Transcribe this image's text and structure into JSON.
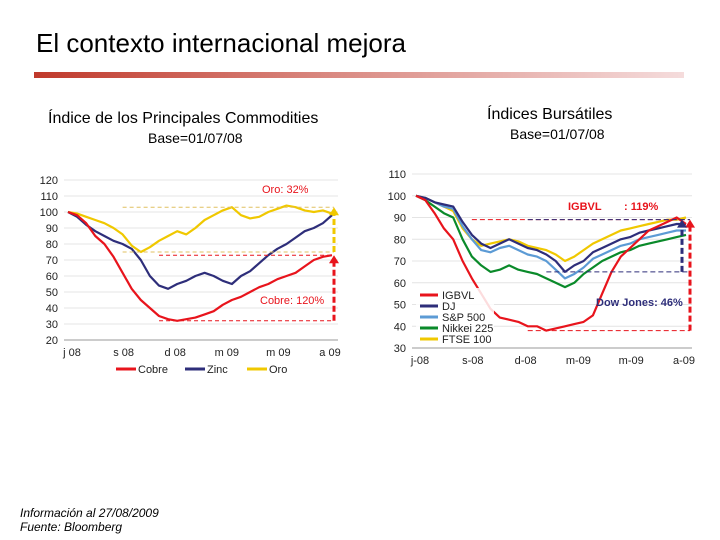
{
  "page": {
    "title": "El contexto internacional mejora",
    "footnote_info": "Información al 27/08/2009",
    "footnote_source": "Fuente: Bloomberg"
  },
  "chart_data": [
    {
      "type": "line",
      "title": "Índice de los Principales Commodities",
      "subtitle": "Base=01/07/08",
      "y_ticks": [
        "120",
        "110",
        "100",
        "90",
        "80",
        "70",
        "60",
        "50",
        "40",
        "30",
        "20"
      ],
      "ylim": [
        20,
        120
      ],
      "x_ticks": [
        "j 08",
        "s 08",
        "d 08",
        "m 09",
        "m 09",
        "a 09"
      ],
      "series": [
        {
          "name": "Cobre",
          "color": "#e8141c",
          "values": [
            100,
            98,
            93,
            85,
            80,
            72,
            62,
            52,
            45,
            40,
            35,
            33,
            32,
            33,
            34,
            36,
            38,
            42,
            45,
            47,
            50,
            53,
            55,
            58,
            60,
            62,
            66,
            70,
            72,
            73
          ]
        },
        {
          "name": "Zinc",
          "color": "#2e2e7a",
          "values": [
            100,
            97,
            92,
            88,
            85,
            82,
            80,
            77,
            70,
            60,
            54,
            52,
            55,
            57,
            60,
            62,
            60,
            57,
            55,
            60,
            63,
            68,
            73,
            77,
            80,
            84,
            88,
            90,
            93,
            98
          ]
        },
        {
          "name": "Oro",
          "color": "#f0c800",
          "values": [
            100,
            99,
            97,
            95,
            93,
            90,
            86,
            79,
            75,
            78,
            82,
            85,
            88,
            86,
            90,
            95,
            98,
            101,
            103,
            98,
            96,
            97,
            100,
            102,
            104,
            103,
            101,
            100,
            101,
            99
          ]
        }
      ],
      "annotations": [
        {
          "text": "Oro: 32%",
          "color": "#e8141c"
        },
        {
          "text": "Cobre: 120%",
          "color": "#e8141c"
        }
      ]
    },
    {
      "type": "line",
      "title": "Índices Bursátiles",
      "subtitle": "Base=01/07/08",
      "y_ticks": [
        "110",
        "100",
        "90",
        "80",
        "70",
        "60",
        "50",
        "40",
        "30"
      ],
      "ylim": [
        30,
        110
      ],
      "x_ticks": [
        "j-08",
        "s-08",
        "d-08",
        "m-09",
        "m-09",
        "a-09"
      ],
      "series": [
        {
          "name": "IGBVL",
          "color": "#e8141c",
          "values": [
            100,
            98,
            92,
            85,
            80,
            70,
            62,
            55,
            48,
            44,
            43,
            42,
            40,
            40,
            38,
            39,
            40,
            41,
            42,
            45,
            55,
            65,
            72,
            76,
            80,
            84,
            86,
            88,
            90,
            87
          ]
        },
        {
          "name": "DJ",
          "color": "#2e2e7a",
          "values": [
            100,
            99,
            97,
            96,
            95,
            88,
            82,
            78,
            76,
            78,
            80,
            78,
            76,
            75,
            73,
            70,
            65,
            68,
            70,
            74,
            76,
            78,
            80,
            81,
            83,
            84,
            85,
            86,
            87,
            87
          ]
        },
        {
          "name": "S&P 500",
          "color": "#5c9bd5",
          "values": [
            100,
            99,
            97,
            95,
            94,
            86,
            80,
            75,
            74,
            76,
            77,
            75,
            73,
            72,
            70,
            66,
            62,
            64,
            67,
            71,
            73,
            75,
            77,
            78,
            80,
            81,
            82,
            83,
            84,
            84
          ]
        },
        {
          "name": "Nikkei 225",
          "color": "#0a8a2a",
          "values": [
            100,
            98,
            95,
            92,
            90,
            80,
            72,
            68,
            65,
            66,
            68,
            66,
            65,
            64,
            62,
            60,
            58,
            60,
            64,
            67,
            70,
            72,
            74,
            75,
            77,
            78,
            79,
            80,
            81,
            82
          ]
        },
        {
          "name": "FTSE 100",
          "color": "#f0c800",
          "values": [
            100,
            99,
            97,
            95,
            93,
            85,
            80,
            77,
            78,
            79,
            80,
            79,
            77,
            76,
            75,
            73,
            70,
            72,
            75,
            78,
            80,
            82,
            84,
            85,
            86,
            87,
            88,
            89,
            89,
            90
          ]
        }
      ],
      "annotations": [
        {
          "text": "IGBVL",
          "color": "#e8141c"
        },
        {
          "text": ": 119%",
          "color": "#e8141c"
        },
        {
          "text": "Dow Jones: 46%",
          "color": "#2e2e7a"
        }
      ]
    }
  ]
}
